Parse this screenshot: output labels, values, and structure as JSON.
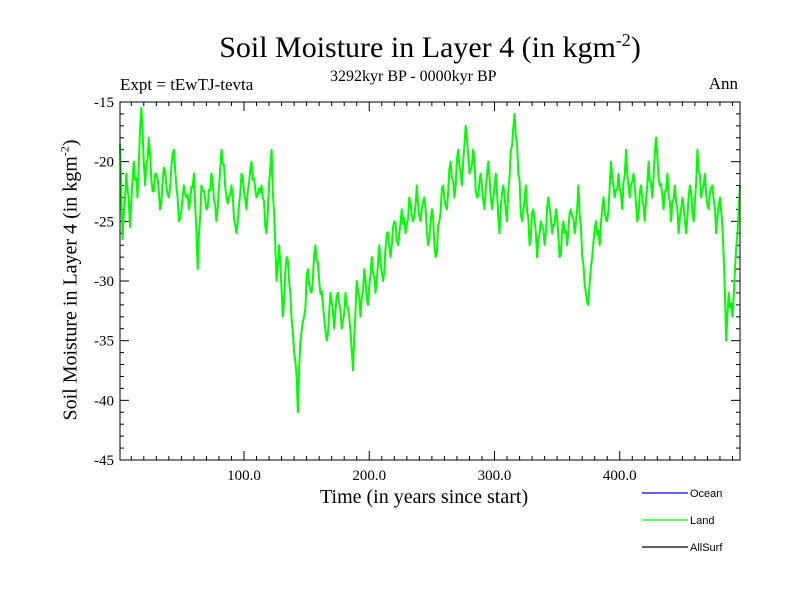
{
  "chart_data": {
    "type": "line",
    "title": "Soil Moisture in Layer 4 (in kgm",
    "title_exp": "-2",
    "title_close": ")",
    "subtitle": "3292kyr BP - 0000kyr BP",
    "expt_label": "Expt = tEwTJ-tevta",
    "season": "Ann",
    "xlabel": "Time (in years since start)",
    "ylabel": "Soil Moisture in Layer 4 (in kgm",
    "ylabel_exp": "-2",
    "ylabel_close": ")",
    "xlim": [
      1,
      496
    ],
    "ylim": [
      -45,
      -15
    ],
    "x_ticks": [
      100,
      200,
      300,
      400
    ],
    "x_tick_labels": [
      "100.0",
      "200.0",
      "300.0",
      "400.0"
    ],
    "y_ticks": [
      -15,
      -20,
      -25,
      -30,
      -35,
      -40,
      -45
    ],
    "y_tick_labels": [
      "-15",
      "-20",
      "-25",
      "-30",
      "-35",
      "-40",
      "-45"
    ],
    "series": [
      {
        "name": "Land",
        "color": "#00ff00",
        "anchors": [
          [
            1,
            -18.5
          ],
          [
            3,
            -26.5
          ],
          [
            6,
            -21
          ],
          [
            9,
            -25.5
          ],
          [
            12,
            -20
          ],
          [
            15,
            -23
          ],
          [
            18,
            -15.5
          ],
          [
            21,
            -22
          ],
          [
            24,
            -18
          ],
          [
            27,
            -22.5
          ],
          [
            30,
            -21
          ],
          [
            33,
            -24
          ],
          [
            36,
            -20.5
          ],
          [
            40,
            -23
          ],
          [
            44,
            -19
          ],
          [
            48,
            -25
          ],
          [
            52,
            -22
          ],
          [
            56,
            -24
          ],
          [
            60,
            -21
          ],
          [
            63,
            -29
          ],
          [
            66,
            -22
          ],
          [
            70,
            -24
          ],
          [
            74,
            -21
          ],
          [
            78,
            -25
          ],
          [
            82,
            -19
          ],
          [
            86,
            -23
          ],
          [
            90,
            -22
          ],
          [
            94,
            -26
          ],
          [
            98,
            -21
          ],
          [
            102,
            -24
          ],
          [
            106,
            -20
          ],
          [
            110,
            -23
          ],
          [
            114,
            -22
          ],
          [
            118,
            -26
          ],
          [
            122,
            -19
          ],
          [
            126,
            -30
          ],
          [
            128,
            -27
          ],
          [
            131,
            -33
          ],
          [
            134,
            -28
          ],
          [
            137,
            -31
          ],
          [
            140,
            -36
          ],
          [
            142,
            -38
          ],
          [
            143,
            -41
          ],
          [
            145,
            -35
          ],
          [
            148,
            -33
          ],
          [
            151,
            -29
          ],
          [
            154,
            -31
          ],
          [
            157,
            -27
          ],
          [
            160,
            -30
          ],
          [
            163,
            -32
          ],
          [
            166,
            -35
          ],
          [
            169,
            -31
          ],
          [
            172,
            -34
          ],
          [
            175,
            -31
          ],
          [
            178,
            -34
          ],
          [
            181,
            -31
          ],
          [
            184,
            -33
          ],
          [
            187,
            -37.5
          ],
          [
            190,
            -30
          ],
          [
            193,
            -33
          ],
          [
            196,
            -29
          ],
          [
            199,
            -32
          ],
          [
            202,
            -28
          ],
          [
            205,
            -31
          ],
          [
            208,
            -27
          ],
          [
            211,
            -30
          ],
          [
            214,
            -26
          ],
          [
            217,
            -28
          ],
          [
            220,
            -25
          ],
          [
            223,
            -27
          ],
          [
            226,
            -24
          ],
          [
            229,
            -26
          ],
          [
            232,
            -23
          ],
          [
            235,
            -25
          ],
          [
            238,
            -22
          ],
          [
            241,
            -25
          ],
          [
            244,
            -23
          ],
          [
            247,
            -27
          ],
          [
            250,
            -24
          ],
          [
            253,
            -28
          ],
          [
            256,
            -25
          ],
          [
            259,
            -22
          ],
          [
            262,
            -24
          ],
          [
            265,
            -20
          ],
          [
            268,
            -23
          ],
          [
            271,
            -19
          ],
          [
            274,
            -22
          ],
          [
            277,
            -17
          ],
          [
            280,
            -21
          ],
          [
            283,
            -19
          ],
          [
            286,
            -23
          ],
          [
            289,
            -21
          ],
          [
            292,
            -24
          ],
          [
            295,
            -20
          ],
          [
            298,
            -24
          ],
          [
            301,
            -21
          ],
          [
            304,
            -26
          ],
          [
            307,
            -22
          ],
          [
            310,
            -25
          ],
          [
            313,
            -19
          ],
          [
            316,
            -16
          ],
          [
            319,
            -21
          ],
          [
            322,
            -25
          ],
          [
            325,
            -22
          ],
          [
            328,
            -27
          ],
          [
            331,
            -24
          ],
          [
            334,
            -28
          ],
          [
            337,
            -25
          ],
          [
            340,
            -27
          ],
          [
            343,
            -23
          ],
          [
            346,
            -26
          ],
          [
            349,
            -24
          ],
          [
            352,
            -28
          ],
          [
            355,
            -25
          ],
          [
            358,
            -27
          ],
          [
            361,
            -24
          ],
          [
            364,
            -26
          ],
          [
            367,
            -22
          ],
          [
            370,
            -28
          ],
          [
            373,
            -31
          ],
          [
            375,
            -32
          ],
          [
            378,
            -28
          ],
          [
            381,
            -25
          ],
          [
            384,
            -27
          ],
          [
            387,
            -23
          ],
          [
            390,
            -25
          ],
          [
            393,
            -20
          ],
          [
            396,
            -23
          ],
          [
            399,
            -21
          ],
          [
            402,
            -24
          ],
          [
            405,
            -19
          ],
          [
            408,
            -23
          ],
          [
            411,
            -21
          ],
          [
            414,
            -25
          ],
          [
            417,
            -22
          ],
          [
            420,
            -25
          ],
          [
            423,
            -20
          ],
          [
            426,
            -23
          ],
          [
            429,
            -18
          ],
          [
            432,
            -22
          ],
          [
            435,
            -24
          ],
          [
            438,
            -21
          ],
          [
            441,
            -25
          ],
          [
            444,
            -22
          ],
          [
            447,
            -26
          ],
          [
            450,
            -23
          ],
          [
            453,
            -26
          ],
          [
            456,
            -22
          ],
          [
            459,
            -25
          ],
          [
            462,
            -19
          ],
          [
            465,
            -23
          ],
          [
            468,
            -21
          ],
          [
            471,
            -24
          ],
          [
            474,
            -22
          ],
          [
            477,
            -26
          ],
          [
            480,
            -23
          ],
          [
            483,
            -28
          ],
          [
            485,
            -35
          ],
          [
            487,
            -31
          ],
          [
            490,
            -33
          ],
          [
            492,
            -29
          ],
          [
            494,
            -26
          ],
          [
            496,
            -22
          ]
        ]
      }
    ],
    "legend": [
      {
        "label": "Ocean",
        "color": "#0000ff"
      },
      {
        "label": "Land",
        "color": "#00ff00"
      },
      {
        "label": "AllSurf",
        "color": "#000000"
      }
    ]
  }
}
